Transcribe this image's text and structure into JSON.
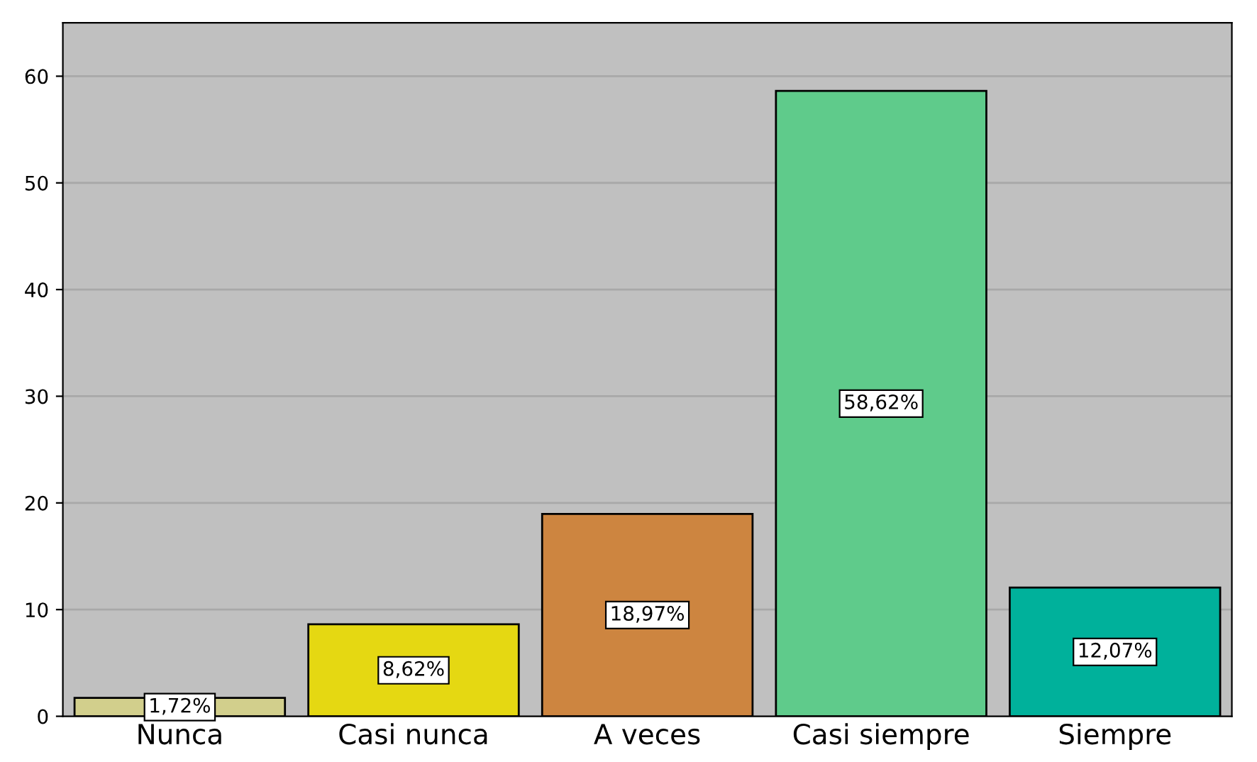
{
  "chart_data": {
    "type": "bar",
    "categories": [
      "Nunca",
      "Casi nunca",
      "A veces",
      "Casi siempre",
      "Siempre"
    ],
    "values": [
      1.72,
      8.62,
      18.97,
      58.62,
      12.07
    ],
    "colors": [
      "#d2cf8c",
      "#e5d812",
      "#cd8540",
      "#5fcb8b",
      "#00b19b"
    ],
    "value_labels": [
      "1,72%",
      "8,62%",
      "18,97%",
      "58,62%",
      "12,07%"
    ],
    "ylim": [
      0,
      65
    ],
    "yticks": [
      0,
      10,
      20,
      30,
      40,
      50,
      60
    ],
    "grid": "y"
  }
}
